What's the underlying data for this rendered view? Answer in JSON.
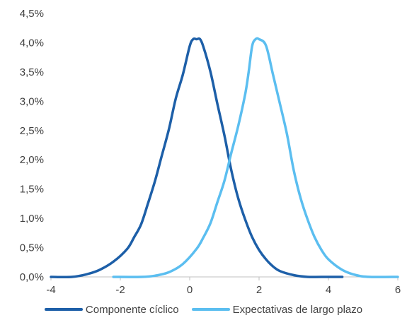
{
  "chart_data": {
    "type": "line",
    "title": "",
    "xlabel": "",
    "ylabel": "",
    "xlim": [
      -4,
      6
    ],
    "ylim": [
      0,
      0.045
    ],
    "x_ticks": [
      -4,
      -2,
      0,
      2,
      4,
      6
    ],
    "x_tick_labels": [
      "-4",
      "-2",
      "0",
      "2",
      "4",
      "6"
    ],
    "y_ticks": [
      0,
      0.005,
      0.01,
      0.015,
      0.02,
      0.025,
      0.03,
      0.035,
      0.04,
      0.045
    ],
    "y_tick_labels": [
      "0,0%",
      "0,5%",
      "1,0%",
      "1,5%",
      "2,0%",
      "2,5%",
      "3,0%",
      "3,5%",
      "4,0%",
      "4,5%"
    ],
    "grid": false,
    "legend_position": "bottom",
    "series": [
      {
        "name": "Componente cíclico",
        "color": "#1d5fa8",
        "x": [
          -4.0,
          -3.4,
          -3.0,
          -2.6,
          -2.2,
          -1.8,
          -1.6,
          -1.4,
          -1.2,
          -1.0,
          -0.8,
          -0.6,
          -0.4,
          -0.2,
          0.0,
          0.1,
          0.2,
          0.3,
          0.4,
          0.6,
          0.8,
          1.0,
          1.2,
          1.4,
          1.6,
          1.8,
          2.0,
          2.2,
          2.4,
          2.6,
          3.0,
          3.4,
          3.8,
          4.4
        ],
        "y": [
          0.0,
          0.0,
          0.0004,
          0.0012,
          0.0026,
          0.0048,
          0.0068,
          0.009,
          0.0126,
          0.0164,
          0.0208,
          0.0252,
          0.0305,
          0.0345,
          0.0394,
          0.0406,
          0.0406,
          0.0406,
          0.0392,
          0.035,
          0.0295,
          0.0242,
          0.0182,
          0.0134,
          0.0098,
          0.0068,
          0.0046,
          0.003,
          0.0018,
          0.001,
          0.0003,
          0.0,
          0.0,
          0.0
        ]
      },
      {
        "name": "Expectativas de largo plazo",
        "color": "#5bbef0",
        "x": [
          -2.2,
          -1.4,
          -1.0,
          -0.6,
          -0.2,
          0.2,
          0.4,
          0.6,
          0.8,
          1.0,
          1.2,
          1.4,
          1.6,
          1.7,
          1.8,
          1.9,
          2.0,
          2.2,
          2.4,
          2.6,
          2.8,
          3.0,
          3.2,
          3.4,
          3.6,
          3.8,
          4.0,
          4.4,
          4.8,
          5.2,
          6.0
        ],
        "y": [
          0.0,
          0.0,
          0.0002,
          0.0008,
          0.0022,
          0.0048,
          0.0068,
          0.0092,
          0.0128,
          0.0164,
          0.0212,
          0.0258,
          0.0312,
          0.035,
          0.0394,
          0.0406,
          0.0406,
          0.0395,
          0.0346,
          0.0296,
          0.0245,
          0.0182,
          0.0134,
          0.0098,
          0.0068,
          0.0046,
          0.003,
          0.0012,
          0.0003,
          0.0,
          0.0
        ]
      }
    ]
  }
}
